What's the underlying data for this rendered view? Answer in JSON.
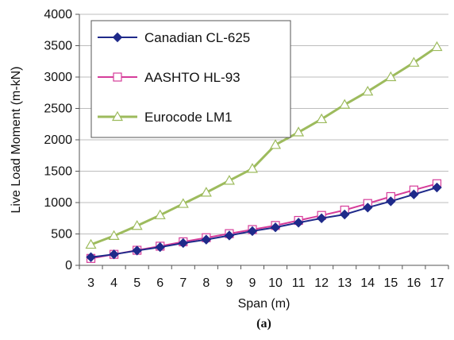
{
  "chart_data": {
    "type": "line",
    "caption": "(a)",
    "xlabel": "Span (m)",
    "ylabel": "Live Load Moment (m-kN)",
    "ylim": [
      0,
      4000
    ],
    "yticks": [
      0,
      500,
      1000,
      1500,
      2000,
      2500,
      3000,
      3500,
      4000
    ],
    "categories": [
      "3",
      "4",
      "5",
      "6",
      "7",
      "8",
      "9",
      "9",
      "10",
      "11",
      "12",
      "13",
      "14",
      "15",
      "16",
      "17"
    ],
    "grid": "horizontal",
    "legend_position": "top-left",
    "series": [
      {
        "name": "Canadian CL-625",
        "color": "#1f2a8a",
        "marker": "diamond-filled",
        "values": [
          130,
          175,
          235,
          290,
          355,
          410,
          475,
          545,
          605,
          680,
          750,
          810,
          920,
          1020,
          1130,
          1240
        ]
      },
      {
        "name": "AASHTO HL-93",
        "color": "#d63d9a",
        "marker": "square-open",
        "values": [
          110,
          175,
          240,
          305,
          375,
          440,
          505,
          570,
          635,
          715,
          795,
          880,
          985,
          1095,
          1200,
          1300
        ]
      },
      {
        "name": "Eurocode LM1",
        "color": "#9dbb5d",
        "marker": "triangle-open",
        "values": [
          330,
          470,
          630,
          800,
          980,
          1160,
          1350,
          1540,
          1920,
          2120,
          2330,
          2560,
          2770,
          3000,
          3230,
          3480
        ]
      }
    ]
  }
}
